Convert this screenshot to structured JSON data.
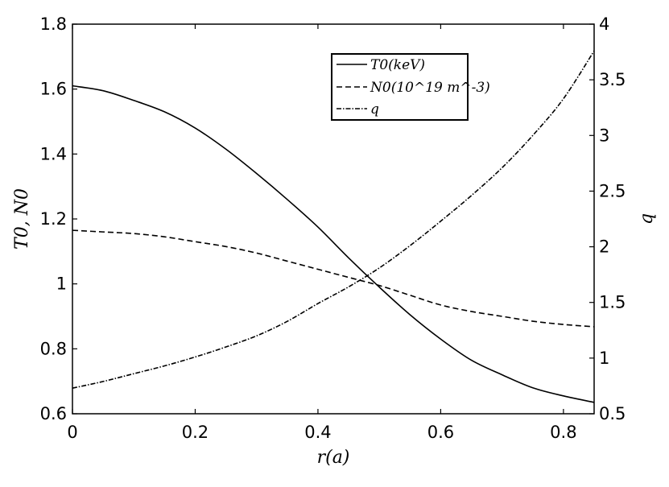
{
  "chart_data": {
    "type": "line",
    "title": "",
    "xlabel": "r(a)",
    "ylabel_left": "T0, N0",
    "ylabel_right": "q",
    "xlim": [
      0,
      0.85
    ],
    "ylim_left": [
      0.6,
      1.8
    ],
    "ylim_right": [
      0.5,
      4
    ],
    "x_ticks": [
      "0",
      "0.2",
      "0.4",
      "0.6",
      "0.8"
    ],
    "y_left_ticks": [
      "0.6",
      "0.8",
      "1",
      "1.2",
      "1.4",
      "1.6",
      "1.8"
    ],
    "y_right_ticks": [
      "0.5",
      "1",
      "1.5",
      "2",
      "2.5",
      "3",
      "3.5",
      "4"
    ],
    "grid": false,
    "legend_position": "top-right",
    "x": [
      0,
      0.05,
      0.1,
      0.15,
      0.2,
      0.25,
      0.3,
      0.35,
      0.4,
      0.45,
      0.5,
      0.55,
      0.6,
      0.65,
      0.7,
      0.75,
      0.8,
      0.85
    ],
    "series": [
      {
        "name": "T0(keV)",
        "axis": "left",
        "dash": "solid",
        "values": [
          1.61,
          1.595,
          1.565,
          1.53,
          1.48,
          1.415,
          1.34,
          1.26,
          1.175,
          1.08,
          0.99,
          0.905,
          0.83,
          0.765,
          0.72,
          0.68,
          0.655,
          0.635
        ]
      },
      {
        "name": "N0(10^19 m^-3)",
        "axis": "left",
        "dash": "dashed",
        "values": [
          1.165,
          1.16,
          1.155,
          1.145,
          1.13,
          1.115,
          1.095,
          1.07,
          1.045,
          1.02,
          0.995,
          0.965,
          0.935,
          0.915,
          0.9,
          0.885,
          0.875,
          0.868
        ]
      },
      {
        "name": "q",
        "axis": "right",
        "dash": "dashdot",
        "values": [
          0.73,
          0.79,
          0.86,
          0.93,
          1.01,
          1.1,
          1.2,
          1.33,
          1.49,
          1.64,
          1.81,
          2.01,
          2.23,
          2.46,
          2.71,
          3.0,
          3.33,
          3.76
        ]
      }
    ]
  }
}
